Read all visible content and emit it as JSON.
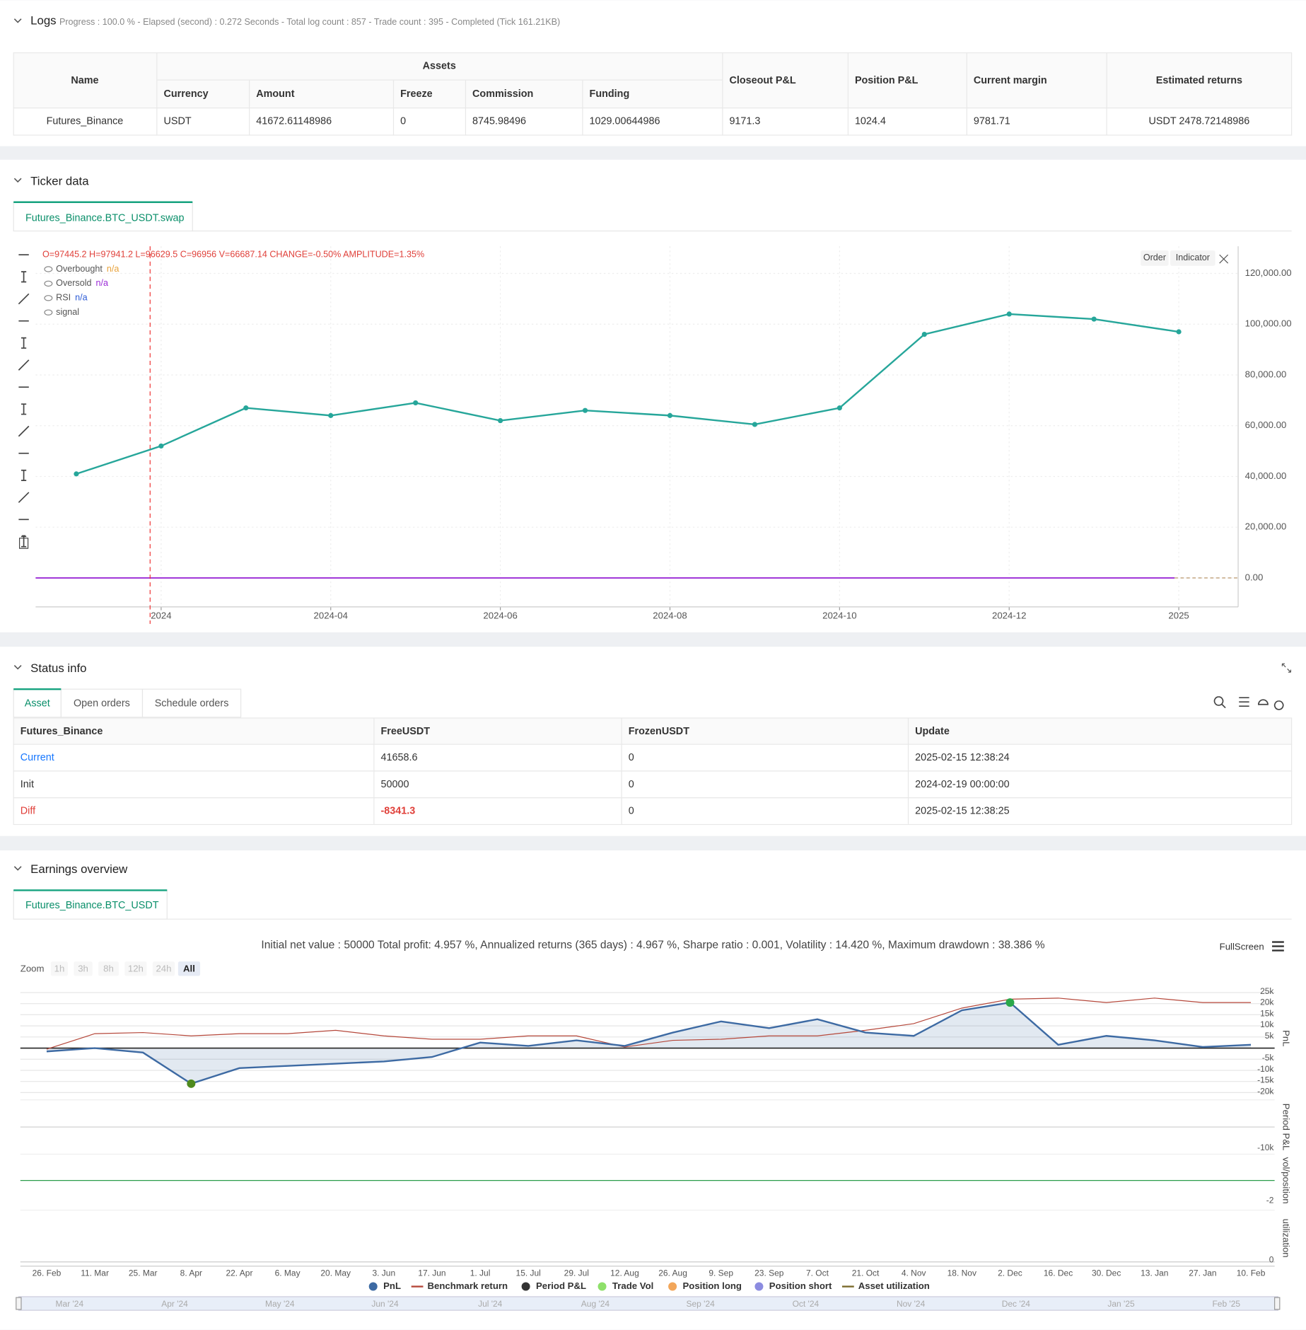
{
  "logs": {
    "title": "Logs",
    "progress": "Progress : 100.0 % - Elapsed (second) : 0.272  Seconds - Total log count : 857 - Trade count : 395 - Completed (Tick 161.21KB)"
  },
  "assets": {
    "group": "Assets",
    "columns": [
      "Name",
      "Currency",
      "Amount",
      "Freeze",
      "Commission",
      "Funding",
      "Closeout P&L",
      "Position P&L",
      "Current margin",
      "Estimated returns"
    ],
    "rows": [
      [
        "Futures_Binance",
        "USDT",
        "41672.61148986",
        "0",
        "8745.98496",
        "1029.00644986",
        "9171.3",
        "1024.4",
        "9781.71",
        "USDT 2478.72148986"
      ]
    ]
  },
  "ticker": {
    "title": "Ticker data",
    "tab": "Futures_Binance.BTC_USDT.swap",
    "buttons": [
      "Order",
      "Indicator"
    ],
    "chart_data": {
      "type": "line",
      "ohlc": "O=97445.2 H=97941.2 L=96629.5 C=96956 V=66687.14 CHANGE=-0.50% AMPLITUDE=1.35%",
      "legend": [
        {
          "name": "Overbought",
          "value": "n/a"
        },
        {
          "name": "Oversold",
          "value": "n/a"
        },
        {
          "name": "RSI",
          "value": "n/a"
        },
        {
          "name": "signal"
        }
      ],
      "categories": [
        null,
        "2024",
        null,
        "2024-04",
        null,
        "2024-06",
        null,
        "2024-08",
        null,
        "2024-10",
        null,
        "2024-12",
        null,
        "2025"
      ],
      "values": [
        41000,
        52000,
        67000,
        64000,
        69000,
        62000,
        66000,
        64000,
        60500,
        67000,
        96000,
        104000,
        102000,
        97000
      ],
      "color": "#26a69a",
      "ylim": [
        -11400,
        130700
      ],
      "yticks": [
        {
          "value": 120000,
          "label": "120,000.00"
        },
        {
          "value": 100000,
          "label": "100,000.00"
        },
        {
          "value": 80000,
          "label": "80,000.00"
        },
        {
          "value": 60000,
          "label": "60,000.00"
        },
        {
          "value": 40000,
          "label": "40,000.00"
        },
        {
          "value": 20000,
          "label": "20,000.00"
        },
        {
          "value": 0,
          "label": "0.00"
        }
      ],
      "grid": true
    }
  },
  "status": {
    "title": "Status info",
    "tabs": [
      "Asset",
      "Open orders",
      "Schedule orders"
    ],
    "columns": [
      "Futures_Binance",
      "FreeUSDT",
      "FrozenUSDT",
      "Update"
    ],
    "rows": [
      [
        "Current",
        "41658.6",
        "0",
        "2025-02-15 12:38:24"
      ],
      [
        "Init",
        "50000",
        "0",
        "2024-02-19 00:00:00"
      ],
      [
        "Diff",
        "-8341.3",
        "0",
        "2025-02-15 12:38:25"
      ]
    ]
  },
  "earnings": {
    "title": "Earnings overview",
    "tab": "Futures_Binance.BTC_USDT",
    "summary": "Initial net value : 50000 Total profit: 4.957 %, Annualized returns (365 days) : 4.967 %, Sharpe ratio : 0.001, Volatility : 14.420 %, Maximum drawdown : 38.386 %",
    "fullscreen": "FullScreen",
    "zoom": {
      "label": "Zoom",
      "buttons": [
        "1h",
        "3h",
        "8h",
        "12h",
        "24h",
        "All"
      ]
    },
    "chart_data": {
      "type": "line",
      "categories": [
        "26. Feb",
        "11. Mar",
        "25. Mar",
        "8. Apr",
        "22. Apr",
        "6. May",
        "20. May",
        "3. Jun",
        "17. Jun",
        "1. Jul",
        "15. Jul",
        "29. Jul",
        "12. Aug",
        "26. Aug",
        "9. Sep",
        "23. Sep",
        "7. Oct",
        "21. Oct",
        "4. Nov",
        "18. Nov",
        "2. Dec",
        "16. Dec",
        "30. Dec",
        "13. Jan",
        "27. Jan",
        "10. Feb"
      ],
      "series": [
        {
          "name": "PnL",
          "color": "#3d6aa3",
          "values": [
            -1500,
            0,
            -2000,
            -16000,
            -9000,
            -8000,
            -7000,
            -6000,
            -4000,
            2500,
            1000,
            3500,
            1000,
            7000,
            12000,
            9000,
            13000,
            7000,
            5500,
            17000,
            20500,
            1500,
            5500,
            3500,
            500,
            1500
          ]
        },
        {
          "name": "Benchmark return",
          "color": "#b5473a",
          "values": [
            -500,
            6500,
            7000,
            5500,
            6500,
            6500,
            8000,
            5500,
            4000,
            4000,
            5500,
            5500,
            500,
            3500,
            4000,
            5500,
            5500,
            8000,
            11000,
            18000,
            22000,
            22500,
            20500,
            22500,
            20500,
            20500
          ]
        }
      ],
      "ylim": [
        -20600,
        29400
      ],
      "yticks": [
        {
          "value": 25000,
          "label": "25k"
        },
        {
          "value": 20000,
          "label": "20k"
        },
        {
          "value": 15000,
          "label": "15k"
        },
        {
          "value": 10000,
          "label": "10k"
        },
        {
          "value": 5000,
          "label": "5k"
        },
        {
          "value": -5000,
          "label": "-5k"
        },
        {
          "value": -10000,
          "label": "-10k"
        },
        {
          "value": -15000,
          "label": "-15k"
        },
        {
          "value": -20000,
          "label": "-20k"
        }
      ],
      "grid": true
    },
    "legend_extra": [
      {
        "name": "Period P&L",
        "color": "#333333"
      },
      {
        "name": "Trade Vol",
        "color": "#8ee06a"
      },
      {
        "name": "Position long",
        "color": "#f2a65a"
      },
      {
        "name": "Position short",
        "color": "#8c8ce0"
      },
      {
        "name": "Asset utilization",
        "color": "#7a6a2a"
      }
    ],
    "panels": [
      "PnL",
      "Period P&L",
      "vol/position",
      "utilization"
    ],
    "panel_ticks": [
      "-10k",
      "-2",
      "0"
    ],
    "navigator": [
      "Mar '24",
      "Apr '24",
      "May '24",
      "Jun '24",
      "Jul '24",
      "Aug '24",
      "Sep '24",
      "Oct '24",
      "Nov '24",
      "Dec '24",
      "Jan '25",
      "Feb '25"
    ]
  }
}
